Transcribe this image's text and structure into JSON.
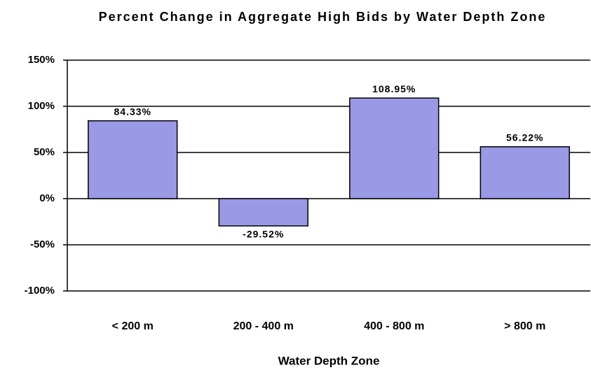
{
  "chart_data": {
    "type": "bar",
    "title": "Percent Change in Aggregate High Bids by Water Depth Zone",
    "x_label": "Water Depth Zone",
    "categories": [
      "< 200 m",
      "200 - 400 m",
      "400 - 800 m",
      "> 800 m"
    ],
    "values": [
      84.33,
      -29.52,
      108.95,
      56.22
    ],
    "value_labels": [
      "84.33%",
      "-29.52%",
      "108.95%",
      "56.22%"
    ],
    "color": "#9999e6",
    "ylim": [
      -100,
      150
    ],
    "yticks": [
      {
        "value": -100,
        "label": "-100%"
      },
      {
        "value": -50,
        "label": "-50%"
      },
      {
        "value": 0,
        "label": "0%"
      },
      {
        "value": 50,
        "label": "50%"
      },
      {
        "value": 100,
        "label": "100%"
      },
      {
        "value": 150,
        "label": "150%"
      }
    ],
    "grid": true
  }
}
